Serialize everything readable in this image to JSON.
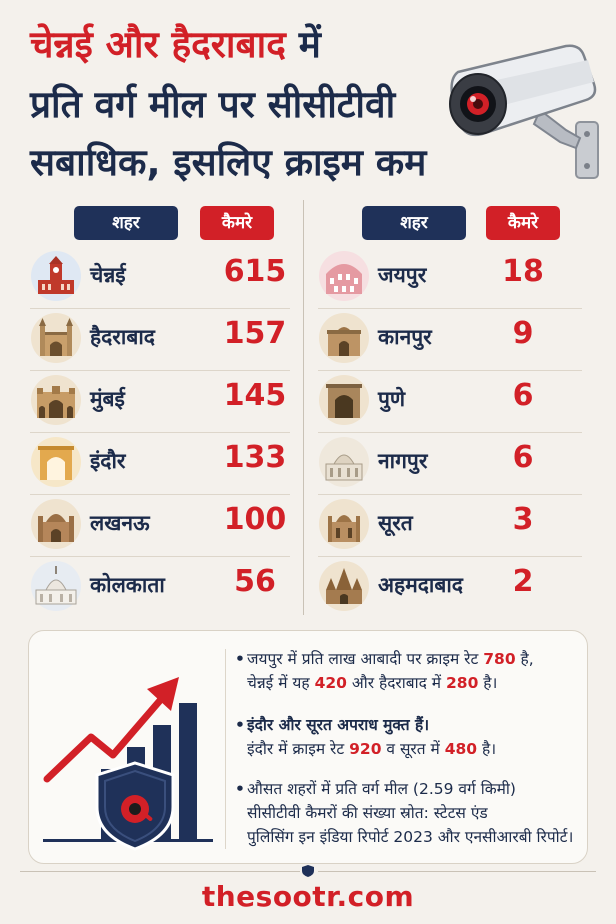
{
  "title": {
    "line1_red": "चेन्नई और हैदराबाद",
    "line1_rest": " में",
    "line2": "प्रति वर्ग मील पर सीसीटीवी",
    "line3": "सबाधिक, इसलिए क्राइम कम"
  },
  "table_headers": {
    "city": "शहर",
    "cameras": "कैमरे"
  },
  "left_rows": [
    {
      "city": "चेन्नई",
      "value": "615",
      "icon": "chennai-monument-icon"
    },
    {
      "city": "हैदराबाद",
      "value": "157",
      "icon": "charminar-icon"
    },
    {
      "city": "मुंबई",
      "value": "145",
      "icon": "gateway-of-india-icon"
    },
    {
      "city": "इंदौर",
      "value": "133",
      "icon": "indore-gate-icon"
    },
    {
      "city": "लखनऊ",
      "value": "100",
      "icon": "lucknow-monument-icon"
    },
    {
      "city": "कोलकाता",
      "value": "56",
      "icon": "victoria-memorial-icon"
    }
  ],
  "right_rows": [
    {
      "city": "जयपुर",
      "value": "18",
      "icon": "hawa-mahal-icon"
    },
    {
      "city": "कानपुर",
      "value": "9",
      "icon": "kanpur-monument-icon"
    },
    {
      "city": "पुणे",
      "value": "6",
      "icon": "pune-gate-icon"
    },
    {
      "city": "नागपुर",
      "value": "6",
      "icon": "nagpur-dome-icon"
    },
    {
      "city": "सूरत",
      "value": "3",
      "icon": "surat-monument-icon"
    },
    {
      "city": "अहमदाबाद",
      "value": "2",
      "icon": "ahmedabad-temple-icon"
    }
  ],
  "info": {
    "b1_l1_pre": "जयपुर में प्रति लाख आबादी पर क्राइम रेट ",
    "b1_n1": "780",
    "b1_l1_post": " है,",
    "b1_l2_pre": "चेन्नई में यह ",
    "b1_n2": "420",
    "b1_l2_mid": " और हैदराबाद में ",
    "b1_n3": "280",
    "b1_l2_post": " है।",
    "b2_l1": "इंदौर और सूरत अपराध मुक्त हैं।",
    "b2_l2_pre": "इंदौर में क्राइम रेट ",
    "b2_n1": "920",
    "b2_l2_mid": " व सूरत में ",
    "b2_n2": "480",
    "b2_l2_post": " है।",
    "b3_l1": "औसत शहरों में प्रति वर्ग मील (2.59 वर्ग किमी)",
    "b3_l2": "सीसीटीवी कैमरों की संख्या स्रोत: स्टेटस एंड",
    "b3_l3": "पुलिसिंग इन इंडिया रिपोर्ट 2023 और एनसीआरबी रिपोर्ट।"
  },
  "footer": {
    "site": "thesootr.com"
  },
  "colors": {
    "red": "#d22027",
    "navy": "#1f3159",
    "background": "#f4f1ec"
  },
  "icons": {
    "camera": "cctv-camera-icon",
    "graphic": "rising-chart-shield-icon"
  }
}
